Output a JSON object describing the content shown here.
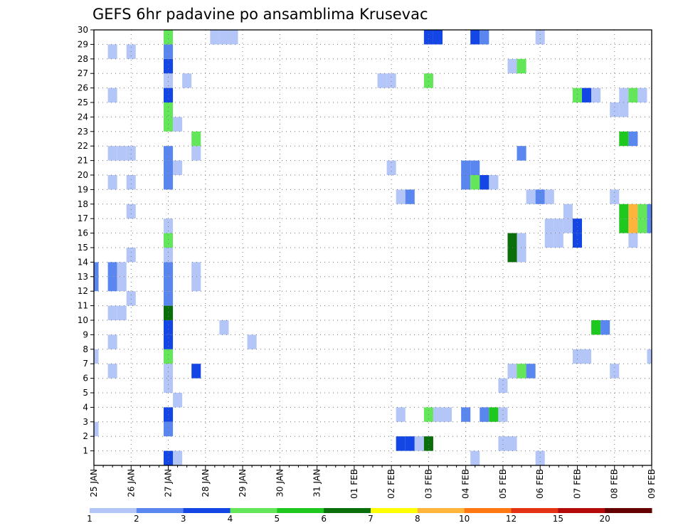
{
  "chart_data": {
    "type": "heatmap",
    "title": "GEFS 6hr padavine po ansamblima Krusevac",
    "xlabel": "",
    "ylabel": "",
    "x_ticks": [
      "25 JAN",
      "26 JAN",
      "27 JAN",
      "28 JAN",
      "29 JAN",
      "30 JAN",
      "31 JAN",
      "01 FEB",
      "02 FEB",
      "03 FEB",
      "04 FEB",
      "05 FEB",
      "06 FEB",
      "07 FEB",
      "08 FEB",
      "09 FEB"
    ],
    "y_ticks": [
      1,
      2,
      3,
      4,
      5,
      6,
      7,
      8,
      9,
      10,
      11,
      12,
      13,
      14,
      15,
      16,
      17,
      18,
      19,
      20,
      21,
      22,
      23,
      24,
      25,
      26,
      27,
      28,
      29,
      30
    ],
    "x_range_steps": [
      0,
      60
    ],
    "step_hours": 6,
    "y_range": [
      0,
      30
    ],
    "grid": true,
    "legend": {
      "placement": "bottom",
      "labels": [
        "1",
        "2",
        "3",
        "4",
        "5",
        "6",
        "7",
        "8",
        "10",
        "12",
        "15",
        "20"
      ],
      "colors": [
        "#b3c6f7",
        "#5a86f0",
        "#1446e6",
        "#64e65a",
        "#1ec81e",
        "#0a6e0a",
        "#ffff00",
        "#ffb43c",
        "#ff7814",
        "#e63214",
        "#b40a0a",
        "#640000"
      ]
    },
    "cells": [
      {
        "member": 1,
        "step": 9,
        "level": 1
      },
      {
        "member": 1,
        "step": 8,
        "level": 3
      },
      {
        "member": 1,
        "step": 41,
        "level": 1
      },
      {
        "member": 1,
        "step": 48,
        "level": 1
      },
      {
        "member": 2,
        "step": 33,
        "level": 3
      },
      {
        "member": 2,
        "step": 34,
        "level": 3
      },
      {
        "member": 2,
        "step": 35,
        "level": 1
      },
      {
        "member": 2,
        "step": 36,
        "level": 6
      },
      {
        "member": 2,
        "step": 44,
        "level": 1
      },
      {
        "member": 2,
        "step": 45,
        "level": 1
      },
      {
        "member": 3,
        "step": 0,
        "level": 1
      },
      {
        "member": 3,
        "step": 8,
        "level": 2
      },
      {
        "member": 4,
        "step": 8,
        "level": 3
      },
      {
        "member": 4,
        "step": 33,
        "level": 1
      },
      {
        "member": 4,
        "step": 36,
        "level": 4
      },
      {
        "member": 4,
        "step": 37,
        "level": 1
      },
      {
        "member": 4,
        "step": 38,
        "level": 1
      },
      {
        "member": 4,
        "step": 40,
        "level": 2
      },
      {
        "member": 4,
        "step": 42,
        "level": 2
      },
      {
        "member": 4,
        "step": 43,
        "level": 5
      },
      {
        "member": 4,
        "step": 44,
        "level": 1
      },
      {
        "member": 5,
        "step": 9,
        "level": 1
      },
      {
        "member": 6,
        "step": 8,
        "level": 1
      },
      {
        "member": 6,
        "step": 44,
        "level": 1
      },
      {
        "member": 7,
        "step": 2,
        "level": 1
      },
      {
        "member": 7,
        "step": 8,
        "level": 1
      },
      {
        "member": 7,
        "step": 11,
        "level": 3
      },
      {
        "member": 7,
        "step": 45,
        "level": 1
      },
      {
        "member": 7,
        "step": 46,
        "level": 4
      },
      {
        "member": 7,
        "step": 47,
        "level": 2
      },
      {
        "member": 7,
        "step": 56,
        "level": 1
      },
      {
        "member": 8,
        "step": 0,
        "level": 1
      },
      {
        "member": 8,
        "step": 8,
        "level": 4
      },
      {
        "member": 8,
        "step": 52,
        "level": 1
      },
      {
        "member": 8,
        "step": 53,
        "level": 1
      },
      {
        "member": 8,
        "step": 60,
        "level": 1
      },
      {
        "member": 9,
        "step": 2,
        "level": 1
      },
      {
        "member": 9,
        "step": 8,
        "level": 3
      },
      {
        "member": 9,
        "step": 17,
        "level": 1
      },
      {
        "member": 10,
        "step": 8,
        "level": 3
      },
      {
        "member": 10,
        "step": 14,
        "level": 1
      },
      {
        "member": 10,
        "step": 54,
        "level": 5
      },
      {
        "member": 10,
        "step": 55,
        "level": 2
      },
      {
        "member": 11,
        "step": 2,
        "level": 1
      },
      {
        "member": 11,
        "step": 3,
        "level": 1
      },
      {
        "member": 11,
        "step": 8,
        "level": 6
      },
      {
        "member": 12,
        "step": 4,
        "level": 1
      },
      {
        "member": 12,
        "step": 8,
        "level": 2
      },
      {
        "member": 13,
        "step": 0,
        "level": 2
      },
      {
        "member": 13,
        "step": 2,
        "level": 2
      },
      {
        "member": 13,
        "step": 3,
        "level": 1
      },
      {
        "member": 13,
        "step": 8,
        "level": 2
      },
      {
        "member": 13,
        "step": 11,
        "level": 1
      },
      {
        "member": 14,
        "step": 0,
        "level": 2
      },
      {
        "member": 14,
        "step": 2,
        "level": 2
      },
      {
        "member": 14,
        "step": 3,
        "level": 1
      },
      {
        "member": 14,
        "step": 8,
        "level": 2
      },
      {
        "member": 14,
        "step": 11,
        "level": 1
      },
      {
        "member": 15,
        "step": 4,
        "level": 1
      },
      {
        "member": 15,
        "step": 8,
        "level": 1
      },
      {
        "member": 15,
        "step": 45,
        "level": 6
      },
      {
        "member": 15,
        "step": 46,
        "level": 1
      },
      {
        "member": 16,
        "step": 8,
        "level": 4
      },
      {
        "member": 16,
        "step": 45,
        "level": 6
      },
      {
        "member": 16,
        "step": 46,
        "level": 1
      },
      {
        "member": 16,
        "step": 49,
        "level": 1
      },
      {
        "member": 16,
        "step": 50,
        "level": 1
      },
      {
        "member": 16,
        "step": 52,
        "level": 3
      },
      {
        "member": 16,
        "step": 58,
        "level": 1
      },
      {
        "member": 17,
        "step": 8,
        "level": 1
      },
      {
        "member": 17,
        "step": 49,
        "level": 1
      },
      {
        "member": 17,
        "step": 50,
        "level": 1
      },
      {
        "member": 17,
        "step": 51,
        "level": 1
      },
      {
        "member": 17,
        "step": 52,
        "level": 3
      },
      {
        "member": 17,
        "step": 57,
        "level": 5
      },
      {
        "member": 17,
        "step": 58,
        "level": 8
      },
      {
        "member": 17,
        "step": 59,
        "level": 4
      },
      {
        "member": 17,
        "step": 60,
        "level": 2
      },
      {
        "member": 18,
        "step": 4,
        "level": 1
      },
      {
        "member": 18,
        "step": 51,
        "level": 1
      },
      {
        "member": 18,
        "step": 57,
        "level": 5
      },
      {
        "member": 18,
        "step": 58,
        "level": 8
      },
      {
        "member": 18,
        "step": 59,
        "level": 4
      },
      {
        "member": 18,
        "step": 60,
        "level": 2
      },
      {
        "member": 19,
        "step": 33,
        "level": 1
      },
      {
        "member": 19,
        "step": 34,
        "level": 2
      },
      {
        "member": 19,
        "step": 47,
        "level": 1
      },
      {
        "member": 19,
        "step": 48,
        "level": 2
      },
      {
        "member": 19,
        "step": 49,
        "level": 1
      },
      {
        "member": 19,
        "step": 56,
        "level": 1
      },
      {
        "member": 20,
        "step": 2,
        "level": 1
      },
      {
        "member": 20,
        "step": 4,
        "level": 1
      },
      {
        "member": 20,
        "step": 8,
        "level": 2
      },
      {
        "member": 20,
        "step": 40,
        "level": 2
      },
      {
        "member": 20,
        "step": 41,
        "level": 4
      },
      {
        "member": 20,
        "step": 42,
        "level": 3
      },
      {
        "member": 20,
        "step": 43,
        "level": 1
      },
      {
        "member": 21,
        "step": 8,
        "level": 2
      },
      {
        "member": 21,
        "step": 9,
        "level": 1
      },
      {
        "member": 21,
        "step": 32,
        "level": 1
      },
      {
        "member": 21,
        "step": 40,
        "level": 2
      },
      {
        "member": 21,
        "step": 41,
        "level": 2
      },
      {
        "member": 22,
        "step": 2,
        "level": 1
      },
      {
        "member": 22,
        "step": 3,
        "level": 1
      },
      {
        "member": 22,
        "step": 4,
        "level": 1
      },
      {
        "member": 22,
        "step": 8,
        "level": 2
      },
      {
        "member": 22,
        "step": 11,
        "level": 1
      },
      {
        "member": 22,
        "step": 46,
        "level": 2
      },
      {
        "member": 23,
        "step": 11,
        "level": 4
      },
      {
        "member": 23,
        "step": 57,
        "level": 5
      },
      {
        "member": 23,
        "step": 58,
        "level": 2
      },
      {
        "member": 24,
        "step": 8,
        "level": 4
      },
      {
        "member": 24,
        "step": 9,
        "level": 1
      },
      {
        "member": 25,
        "step": 8,
        "level": 4
      },
      {
        "member": 25,
        "step": 56,
        "level": 1
      },
      {
        "member": 25,
        "step": 57,
        "level": 1
      },
      {
        "member": 26,
        "step": 2,
        "level": 1
      },
      {
        "member": 26,
        "step": 8,
        "level": 3
      },
      {
        "member": 26,
        "step": 52,
        "level": 4
      },
      {
        "member": 26,
        "step": 53,
        "level": 3
      },
      {
        "member": 26,
        "step": 54,
        "level": 1
      },
      {
        "member": 26,
        "step": 57,
        "level": 1
      },
      {
        "member": 26,
        "step": 58,
        "level": 4
      },
      {
        "member": 26,
        "step": 59,
        "level": 1
      },
      {
        "member": 27,
        "step": 8,
        "level": 1
      },
      {
        "member": 27,
        "step": 10,
        "level": 1
      },
      {
        "member": 27,
        "step": 31,
        "level": 1
      },
      {
        "member": 27,
        "step": 32,
        "level": 1
      },
      {
        "member": 27,
        "step": 36,
        "level": 4
      },
      {
        "member": 28,
        "step": 8,
        "level": 3
      },
      {
        "member": 28,
        "step": 45,
        "level": 1
      },
      {
        "member": 28,
        "step": 46,
        "level": 4
      },
      {
        "member": 29,
        "step": 2,
        "level": 1
      },
      {
        "member": 29,
        "step": 4,
        "level": 1
      },
      {
        "member": 29,
        "step": 8,
        "level": 2
      },
      {
        "member": 30,
        "step": 8,
        "level": 4
      },
      {
        "member": 30,
        "step": 13,
        "level": 1
      },
      {
        "member": 30,
        "step": 14,
        "level": 1
      },
      {
        "member": 30,
        "step": 15,
        "level": 1
      },
      {
        "member": 30,
        "step": 36,
        "level": 3
      },
      {
        "member": 30,
        "step": 37,
        "level": 3
      },
      {
        "member": 30,
        "step": 41,
        "level": 3
      },
      {
        "member": 30,
        "step": 42,
        "level": 2
      },
      {
        "member": 30,
        "step": 48,
        "level": 1
      }
    ]
  }
}
